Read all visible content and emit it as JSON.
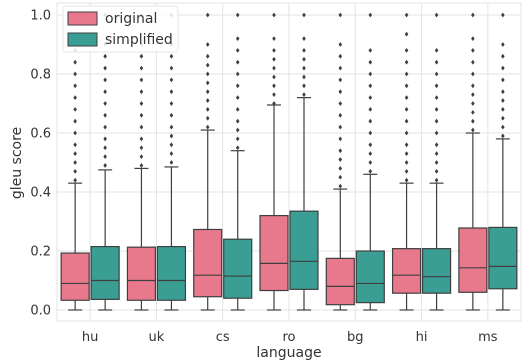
{
  "chart_data": {
    "type": "boxplot",
    "title": "",
    "xlabel": "language",
    "ylabel": "gleu score",
    "ylim": [
      0.0,
      1.0
    ],
    "yticks": [
      "0.0",
      "0.2",
      "0.4",
      "0.6",
      "0.8",
      "1.0"
    ],
    "grid": true,
    "legend_position": "top-left",
    "categories": [
      "hu",
      "uk",
      "cs",
      "ro",
      "bg",
      "hi",
      "ms"
    ],
    "series": [
      {
        "name": "original",
        "color": "#e8798d",
        "boxes": [
          {
            "whislo": 0.0,
            "q1": 0.033,
            "med": 0.09,
            "q3": 0.193,
            "whishi": 0.43,
            "fliers": [
              0.44,
              0.47,
              0.5,
              0.53,
              0.56,
              0.6,
              0.64,
              0.68,
              0.72,
              0.76,
              0.8,
              0.84,
              0.88,
              0.92,
              1.0
            ]
          },
          {
            "whislo": 0.0,
            "q1": 0.033,
            "med": 0.1,
            "q3": 0.213,
            "whishi": 0.48,
            "fliers": [
              0.49,
              0.52,
              0.55,
              0.58,
              0.62,
              0.66,
              0.7,
              0.74,
              0.78,
              0.82,
              0.86,
              0.9,
              1.0
            ]
          },
          {
            "whislo": 0.0,
            "q1": 0.045,
            "med": 0.118,
            "q3": 0.273,
            "whishi": 0.61,
            "fliers": [
              0.62,
              0.65,
              0.68,
              0.71,
              0.74,
              0.77,
              0.8,
              0.83,
              0.86,
              0.9,
              1.0
            ]
          },
          {
            "whislo": 0.0,
            "q1": 0.066,
            "med": 0.158,
            "q3": 0.32,
            "whishi": 0.695,
            "fliers": [
              0.7,
              0.73,
              0.76,
              0.79,
              0.82,
              0.85,
              0.88,
              0.92,
              1.0
            ]
          },
          {
            "whislo": 0.0,
            "q1": 0.018,
            "med": 0.08,
            "q3": 0.175,
            "whishi": 0.41,
            "fliers": [
              0.42,
              0.45,
              0.48,
              0.51,
              0.54,
              0.58,
              0.62,
              0.66,
              0.7,
              0.74,
              0.78,
              0.82,
              0.86,
              0.9,
              1.0
            ]
          },
          {
            "whislo": 0.0,
            "q1": 0.057,
            "med": 0.118,
            "q3": 0.208,
            "whishi": 0.43,
            "fliers": [
              0.44,
              0.47,
              0.5,
              0.53,
              0.56,
              0.6,
              0.64,
              0.68,
              0.72,
              0.76,
              0.8,
              0.84,
              0.88,
              0.935,
              1.0
            ]
          },
          {
            "whislo": 0.0,
            "q1": 0.06,
            "med": 0.143,
            "q3": 0.278,
            "whishi": 0.6,
            "fliers": [
              0.61,
              0.64,
              0.67,
              0.7,
              0.73,
              0.76,
              0.8,
              0.84,
              0.88,
              0.92,
              1.0
            ]
          }
        ]
      },
      {
        "name": "simplified",
        "color": "#3a9e94",
        "boxes": [
          {
            "whislo": 0.0,
            "q1": 0.036,
            "med": 0.1,
            "q3": 0.215,
            "whishi": 0.475,
            "fliers": [
              0.49,
              0.52,
              0.55,
              0.58,
              0.62,
              0.66,
              0.7,
              0.74,
              0.78,
              0.82,
              0.86,
              0.9,
              1.0
            ]
          },
          {
            "whislo": 0.0,
            "q1": 0.033,
            "med": 0.1,
            "q3": 0.215,
            "whishi": 0.485,
            "fliers": [
              0.5,
              0.53,
              0.56,
              0.59,
              0.62,
              0.66,
              0.7,
              0.74,
              0.78,
              0.82,
              0.86,
              0.9,
              1.0
            ]
          },
          {
            "whislo": 0.0,
            "q1": 0.04,
            "med": 0.115,
            "q3": 0.24,
            "whishi": 0.54,
            "fliers": [
              0.55,
              0.58,
              0.61,
              0.64,
              0.68,
              0.72,
              0.76,
              0.8,
              0.84,
              0.88,
              0.92,
              1.0
            ]
          },
          {
            "whislo": 0.0,
            "q1": 0.07,
            "med": 0.165,
            "q3": 0.335,
            "whishi": 0.72,
            "fliers": [
              0.73,
              0.76,
              0.79,
              0.82,
              0.85,
              0.88,
              0.92,
              1.0
            ]
          },
          {
            "whislo": 0.0,
            "q1": 0.025,
            "med": 0.09,
            "q3": 0.2,
            "whishi": 0.46,
            "fliers": [
              0.47,
              0.5,
              0.53,
              0.56,
              0.6,
              0.64,
              0.68,
              0.72,
              0.76,
              0.8,
              0.84,
              0.88,
              1.0
            ]
          },
          {
            "whislo": 0.0,
            "q1": 0.057,
            "med": 0.113,
            "q3": 0.208,
            "whishi": 0.43,
            "fliers": [
              0.44,
              0.47,
              0.5,
              0.53,
              0.56,
              0.6,
              0.64,
              0.68,
              0.72,
              0.76,
              0.8,
              0.84,
              0.88,
              1.0
            ]
          },
          {
            "whislo": 0.0,
            "q1": 0.072,
            "med": 0.148,
            "q3": 0.28,
            "whishi": 0.58,
            "fliers": [
              0.59,
              0.62,
              0.65,
              0.68,
              0.71,
              0.74,
              0.78,
              0.82,
              0.86,
              0.9,
              1.0
            ]
          }
        ]
      }
    ]
  }
}
